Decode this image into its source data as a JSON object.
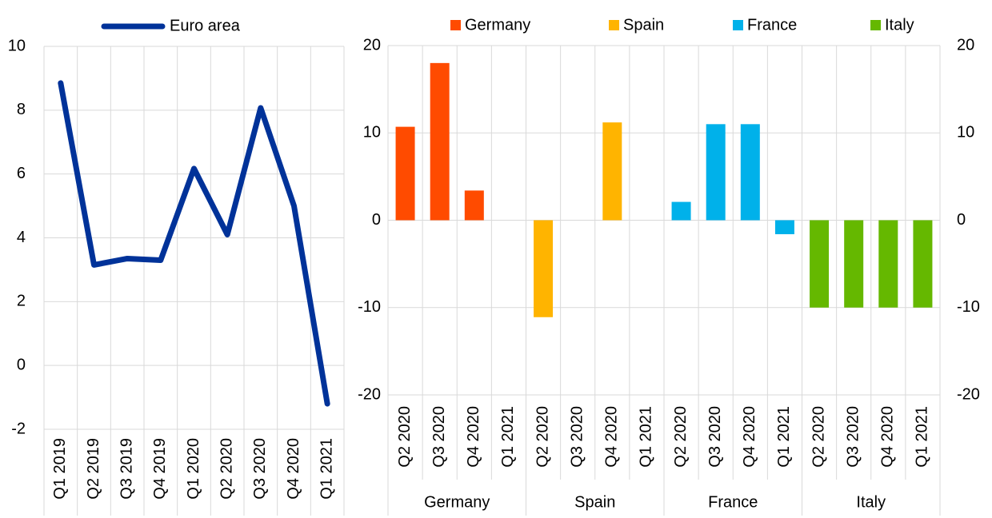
{
  "chart_data": [
    {
      "type": "line",
      "categories": [
        "Q1 2019",
        "Q2 2019",
        "Q3 2019",
        "Q4 2019",
        "Q1 2020",
        "Q2 2020",
        "Q3 2020",
        "Q4 2020",
        "Q1 2021"
      ],
      "series": [
        {
          "name": "Euro area",
          "color": "#003299",
          "values": [
            8.85,
            3.15,
            3.35,
            3.3,
            6.17,
            4.1,
            8.07,
            5.0,
            -1.2
          ]
        }
      ],
      "ylim": [
        -2,
        10
      ],
      "yticks": [
        -2,
        0,
        2,
        4,
        6,
        8,
        10
      ],
      "grid": true
    },
    {
      "type": "bar",
      "categories": [
        "Q2 2020",
        "Q3 2020",
        "Q4 2020",
        "Q1 2021"
      ],
      "series": [
        {
          "name": "Germany",
          "color": "#ff4b00",
          "values": [
            10.7,
            18.0,
            3.4,
            null
          ]
        },
        {
          "name": "Spain",
          "color": "#ffb400",
          "values": [
            -11.1,
            null,
            11.2,
            null
          ]
        },
        {
          "name": "France",
          "color": "#00b1ea",
          "values": [
            2.1,
            11.0,
            11.0,
            -1.6
          ]
        },
        {
          "name": "Italy",
          "color": "#65b800",
          "values": [
            -10.0,
            -10.0,
            -10.0,
            -10.0
          ]
        }
      ],
      "ylim": [
        -20,
        20
      ],
      "yticks": [
        -20,
        -10,
        0,
        10,
        20
      ],
      "y2lim": [
        -20,
        20
      ],
      "y2ticks": [
        -20,
        -10,
        0,
        10,
        20
      ],
      "grid": true
    }
  ]
}
